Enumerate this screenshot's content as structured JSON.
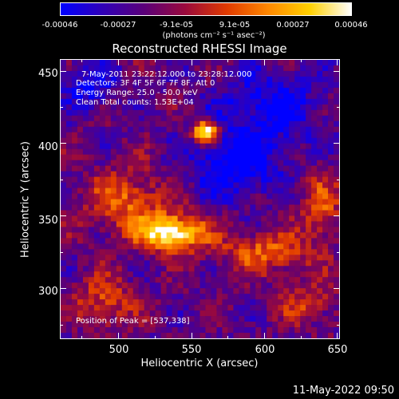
{
  "colorbar": {
    "tick_labels": [
      "-0.00046",
      "-0.00027",
      "-9.1e-05",
      "9.1e-05",
      "0.00027",
      "0.00046"
    ],
    "unit_label": "(photons cm⁻² s⁻¹ asec⁻²)",
    "colors": [
      "#0000ff",
      "#3000b8",
      "#5a007a",
      "#9a0a3c",
      "#e03a00",
      "#ff8800",
      "#ffd000",
      "#ffffff"
    ]
  },
  "title": "Reconstructed RHESSI Image",
  "annotations": {
    "time_range": "7-May-2011 23:22:12.000 to 23:28:12.000",
    "detectors": "Detectors: 3F 4F 5F 6F 7F 8F, Att 0",
    "energy_range": "Energy Range: 25.0 - 50.0 keV",
    "algorithm": "Clean     Total counts: 1.53E+04",
    "peak_position": "Position of Peak = [537,338]"
  },
  "chart_data": {
    "type": "heatmap",
    "title": "Reconstructed RHESSI Image",
    "xlabel": "Heliocentric X (arcsec)",
    "ylabel": "Heliocentric Y (arcsec)",
    "xlim": [
      460,
      652
    ],
    "ylim": [
      265,
      458
    ],
    "x_ticks": [
      500,
      550,
      600,
      650
    ],
    "y_ticks": [
      300,
      350,
      400,
      450
    ],
    "color_range": [
      -0.00046,
      0.00046
    ],
    "peak_position": [
      537,
      338
    ]
  },
  "footer": {
    "timestamp": "11-May-2022 09:50"
  }
}
